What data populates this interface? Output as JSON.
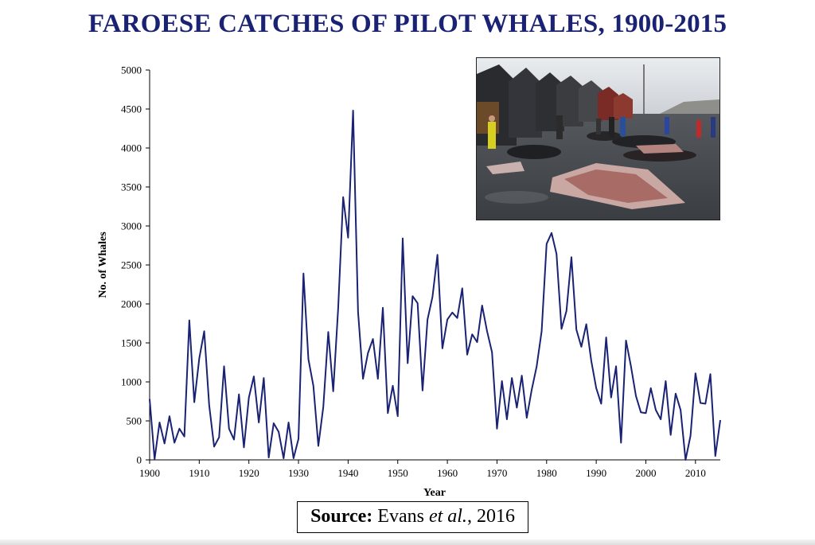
{
  "title": "FAROESE CATCHES OF PILOT WHALES, 1900-2015",
  "source": {
    "label": "Source:",
    "author": "Evans",
    "etal": "et al.",
    "year": ", 2016"
  },
  "photo": {
    "icon": "whale-catch-photo"
  },
  "colors": {
    "title": "#1a2273",
    "line": "#1a2273"
  },
  "chart_data": {
    "type": "line",
    "xlabel": "Year",
    "ylabel": "No. of Whales",
    "xlim": [
      1900,
      2015
    ],
    "ylim": [
      0,
      5000
    ],
    "xticks": [
      1900,
      1910,
      1920,
      1930,
      1940,
      1950,
      1960,
      1970,
      1980,
      1990,
      2000,
      2010
    ],
    "yticks": [
      0,
      500,
      1000,
      1500,
      2000,
      2500,
      3000,
      3500,
      4000,
      4500,
      5000
    ],
    "grid": false,
    "series": [
      {
        "x": [
          1900,
          1901,
          1902,
          1903,
          1904,
          1905,
          1906,
          1907,
          1908,
          1909,
          1910,
          1911,
          1912,
          1913,
          1914,
          1915,
          1916,
          1917,
          1918,
          1919,
          1920,
          1921,
          1922,
          1923,
          1924,
          1925,
          1926,
          1927,
          1928,
          1929,
          1930,
          1931,
          1932,
          1933,
          1934,
          1935,
          1936,
          1937,
          1938,
          1939,
          1940,
          1941,
          1942,
          1943,
          1944,
          1945,
          1946,
          1947,
          1948,
          1949,
          1950,
          1951,
          1952,
          1953,
          1954,
          1955,
          1956,
          1957,
          1958,
          1959,
          1960,
          1961,
          1962,
          1963,
          1964,
          1965,
          1966,
          1967,
          1968,
          1969,
          1970,
          1971,
          1972,
          1973,
          1974,
          1975,
          1976,
          1977,
          1978,
          1979,
          1980,
          1981,
          1982,
          1983,
          1984,
          1985,
          1986,
          1987,
          1988,
          1989,
          1990,
          1991,
          1992,
          1993,
          1994,
          1995,
          1996,
          1997,
          1998,
          1999,
          2000,
          2001,
          2002,
          2003,
          2004,
          2005,
          2006,
          2007,
          2008,
          2009,
          2010,
          2011,
          2012,
          2013,
          2014,
          2015
        ],
        "values": [
          780,
          10,
          480,
          210,
          560,
          220,
          400,
          300,
          1790,
          740,
          1300,
          1650,
          700,
          170,
          290,
          1200,
          400,
          260,
          840,
          160,
          800,
          1070,
          480,
          1050,
          30,
          470,
          360,
          20,
          480,
          20,
          270,
          2390,
          1290,
          950,
          180,
          680,
          1640,
          880,
          1950,
          3370,
          2850,
          4480,
          1900,
          1040,
          1370,
          1550,
          1040,
          1950,
          600,
          950,
          560,
          2840,
          1240,
          2100,
          2010,
          890,
          1800,
          2090,
          2630,
          1430,
          1800,
          1890,
          1820,
          2200,
          1350,
          1610,
          1510,
          1980,
          1650,
          1380,
          400,
          1010,
          520,
          1050,
          670,
          1080,
          540,
          900,
          1200,
          1650,
          2770,
          2910,
          2640,
          1680,
          1910,
          2600,
          1670,
          1450,
          1740,
          1270,
          920,
          720,
          1570,
          800,
          1200,
          220,
          1530,
          1200,
          820,
          610,
          600,
          920,
          640,
          520,
          1010,
          320,
          850,
          640,
          0,
          310,
          1110,
          730,
          720,
          1100,
          50,
          510
        ]
      }
    ]
  }
}
